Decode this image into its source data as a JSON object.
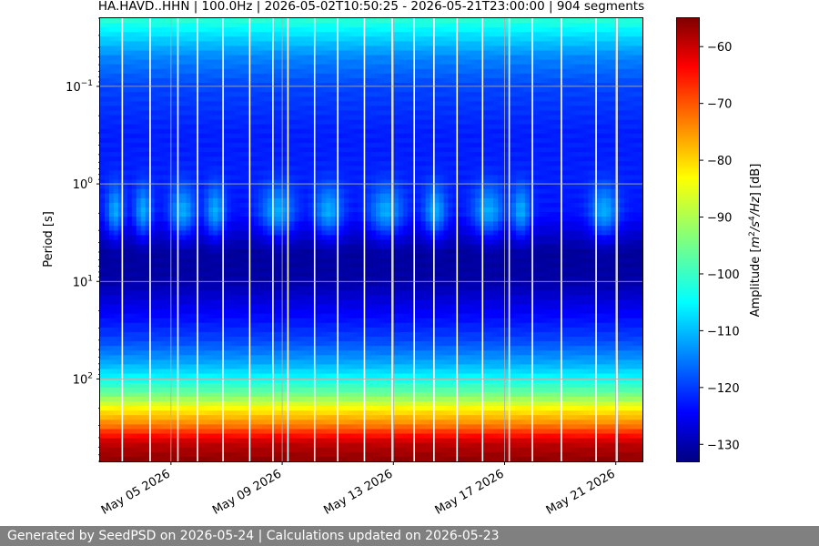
{
  "footer": {
    "text": "Generated by SeedPSD on 2026-05-24 | Calculations updated on 2026-05-23"
  },
  "chart_data": {
    "type": "heatmap",
    "title": "HA.HAVD..HHN | 100.0Hz | 2026-05-02T10:50:25 - 2026-05-21T23:00:00 | 904 segments",
    "xlabel": "",
    "ylabel": "Period [s]",
    "y_scale": "log",
    "y_inverted": true,
    "ylim": [
      0.02,
      700
    ],
    "xlim": [
      "2026-05-02T10:50:25",
      "2026-05-21T23:00:00"
    ],
    "x_tick_labels": [
      {
        "date": "2026-05-05",
        "label": "May 05 2026"
      },
      {
        "date": "2026-05-09",
        "label": "May 09 2026"
      },
      {
        "date": "2026-05-13",
        "label": "May 13 2026"
      },
      {
        "date": "2026-05-17",
        "label": "May 17 2026"
      },
      {
        "date": "2026-05-21",
        "label": "May 21 2026"
      }
    ],
    "y_tick_labels": [
      {
        "value": 0.1,
        "base": "10",
        "exp": "−1"
      },
      {
        "value": 1,
        "base": "10",
        "exp": "0"
      },
      {
        "value": 10,
        "base": "10",
        "exp": "1"
      },
      {
        "value": 100,
        "base": "10",
        "exp": "2"
      }
    ],
    "grid": true,
    "colorbar": {
      "label_main": "Amplitude [",
      "label_m": "m",
      "label_sup1": "2",
      "label_s": "/s",
      "label_sup2": "4",
      "label_hz": "/Hz",
      "label_end": "] [dB]",
      "range": [
        -133,
        -55
      ],
      "ticks": [
        -60,
        -70,
        -80,
        -90,
        -100,
        -110,
        -120,
        -130
      ],
      "colormap": "jet"
    },
    "profile_db": [
      {
        "period": 0.02,
        "db": -100
      },
      {
        "period": 0.03,
        "db": -106
      },
      {
        "period": 0.05,
        "db": -113
      },
      {
        "period": 0.1,
        "db": -118
      },
      {
        "period": 0.3,
        "db": -121
      },
      {
        "period": 1,
        "db": -121
      },
      {
        "period": 2,
        "db": -122
      },
      {
        "period": 3,
        "db": -126
      },
      {
        "period": 5,
        "db": -131
      },
      {
        "period": 10,
        "db": -130
      },
      {
        "period": 20,
        "db": -124
      },
      {
        "period": 40,
        "db": -118
      },
      {
        "period": 70,
        "db": -110
      },
      {
        "period": 100,
        "db": -103
      },
      {
        "period": 150,
        "db": -94
      },
      {
        "period": 200,
        "db": -84
      },
      {
        "period": 300,
        "db": -74
      },
      {
        "period": 450,
        "db": -60
      },
      {
        "period": 700,
        "db": -56
      }
    ],
    "night_noise_windows": [
      {
        "center": "2026-05-03T00:00",
        "width_days": 0.6
      },
      {
        "center": "2026-05-04T00:00",
        "width_days": 0.6
      },
      {
        "center": "2026-05-05T10:00",
        "width_days": 0.9
      },
      {
        "center": "2026-05-06T14:00",
        "width_days": 0.7
      },
      {
        "center": "2026-05-08T20:00",
        "width_days": 1.2
      },
      {
        "center": "2026-05-10T16:00",
        "width_days": 1.0
      },
      {
        "center": "2026-05-12T18:00",
        "width_days": 1.2
      },
      {
        "center": "2026-05-14T12:00",
        "width_days": 0.8
      },
      {
        "center": "2026-05-16T10:00",
        "width_days": 1.1
      },
      {
        "center": "2026-05-17T14:00",
        "width_days": 0.7
      },
      {
        "center": "2026-05-20T14:00",
        "width_days": 1.0
      }
    ],
    "data_gaps": [
      "2026-05-03T06:00",
      "2026-05-04T06:00",
      "2026-05-05T06:00",
      "2026-05-05T23:00",
      "2026-05-06T21:00",
      "2026-05-07T20:00",
      "2026-05-08T16:00",
      "2026-05-09T05:00",
      "2026-05-10T04:00",
      "2026-05-11T00:00",
      "2026-05-11T23:00",
      "2026-05-12T23:00",
      "2026-05-13T18:00",
      "2026-05-14T11:00",
      "2026-05-15T07:00",
      "2026-05-16T05:00",
      "2026-05-17T04:00",
      "2026-05-18T00:00",
      "2026-05-19T01:00",
      "2026-05-20T07:00",
      "2026-05-21T01:00"
    ]
  }
}
